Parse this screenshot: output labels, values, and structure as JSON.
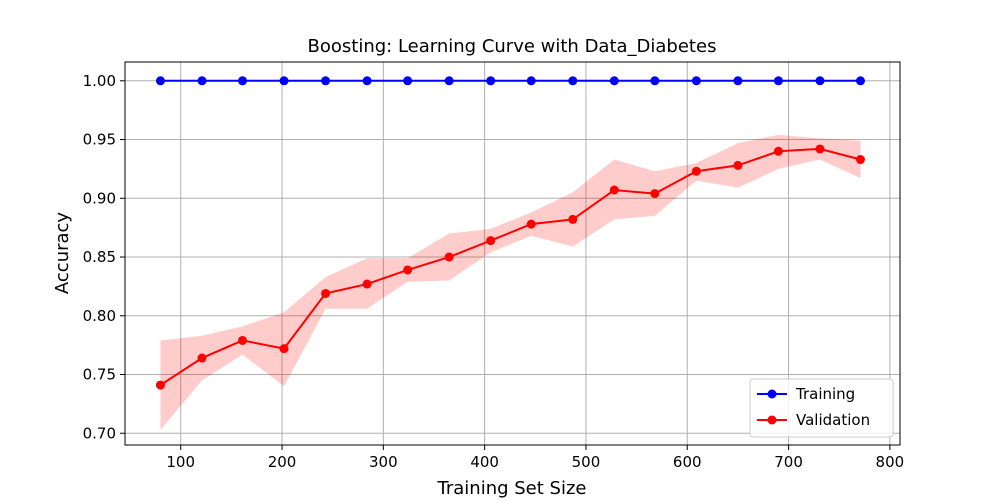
{
  "chart_data": {
    "type": "line",
    "title": "Boosting: Learning Curve with Data_Diabetes",
    "xlabel": "Training Set Size",
    "ylabel": "Accuracy",
    "xlim": [
      45,
      810
    ],
    "ylim": [
      0.69,
      1.016
    ],
    "xticks": [
      100,
      200,
      300,
      400,
      500,
      600,
      700,
      800
    ],
    "yticks": [
      0.7,
      0.75,
      0.8,
      0.85,
      0.9,
      0.95,
      1.0
    ],
    "xtick_labels": [
      "100",
      "200",
      "300",
      "400",
      "500",
      "600",
      "700",
      "800"
    ],
    "ytick_labels": [
      "0.70",
      "0.75",
      "0.80",
      "0.85",
      "0.90",
      "0.95",
      "1.00"
    ],
    "grid": true,
    "legend_position": "lower-right",
    "x": [
      80,
      121,
      161,
      202,
      243,
      284,
      324,
      365,
      406,
      446,
      487,
      528,
      568,
      609,
      650,
      690,
      731,
      771
    ],
    "series": [
      {
        "name": "Training",
        "color": "#0000ff",
        "marker": "circle",
        "values": [
          1.0,
          1.0,
          1.0,
          1.0,
          1.0,
          1.0,
          1.0,
          1.0,
          1.0,
          1.0,
          1.0,
          1.0,
          1.0,
          1.0,
          1.0,
          1.0,
          1.0,
          1.0
        ]
      },
      {
        "name": "Validation",
        "color": "#ff0000",
        "marker": "circle",
        "values": [
          0.741,
          0.764,
          0.779,
          0.772,
          0.819,
          0.827,
          0.839,
          0.85,
          0.864,
          0.878,
          0.882,
          0.907,
          0.904,
          0.923,
          0.928,
          0.94,
          0.942,
          0.933
        ],
        "band_color": "#ff0000",
        "band_opacity": 0.2,
        "band_upper": [
          0.779,
          0.783,
          0.791,
          0.803,
          0.833,
          0.849,
          0.849,
          0.87,
          0.874,
          0.888,
          0.905,
          0.933,
          0.923,
          0.93,
          0.947,
          0.954,
          0.951,
          0.949
        ],
        "band_lower": [
          0.703,
          0.745,
          0.767,
          0.74,
          0.806,
          0.806,
          0.829,
          0.83,
          0.854,
          0.868,
          0.859,
          0.882,
          0.885,
          0.915,
          0.909,
          0.925,
          0.933,
          0.917
        ]
      }
    ]
  }
}
